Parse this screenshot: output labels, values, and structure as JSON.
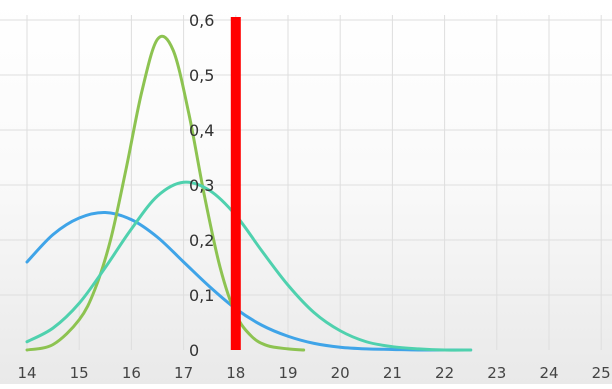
{
  "chart_data": {
    "type": "line",
    "title": "",
    "xlabel": "",
    "ylabel": "",
    "xlim": [
      14,
      25
    ],
    "ylim": [
      0,
      0.6
    ],
    "x_ticks": [
      "14",
      "15",
      "16",
      "17",
      "18",
      "19",
      "20",
      "21",
      "22",
      "23",
      "24",
      "25"
    ],
    "y_ticks": [
      "0",
      "0,1",
      "0,2",
      "0,3",
      "0,4",
      "0,5",
      "0,6"
    ],
    "grid": true,
    "legend": "none",
    "series": [
      {
        "color": "#3fa4e8",
        "points": [
          [
            14.0,
            0.16
          ],
          [
            14.5,
            0.21
          ],
          [
            15.0,
            0.24
          ],
          [
            15.5,
            0.25
          ],
          [
            16.0,
            0.237
          ],
          [
            16.5,
            0.205
          ],
          [
            17.0,
            0.16
          ],
          [
            17.5,
            0.115
          ],
          [
            18.0,
            0.075
          ],
          [
            18.5,
            0.045
          ],
          [
            19.0,
            0.025
          ],
          [
            19.5,
            0.012
          ],
          [
            20.0,
            0.005
          ],
          [
            20.5,
            0.002
          ],
          [
            21.0,
            0.001
          ],
          [
            21.5,
            0.0
          ],
          [
            22.0,
            0.0
          ],
          [
            22.5,
            0.0
          ]
        ]
      },
      {
        "color": "#8dc351",
        "points": [
          [
            14.0,
            0.0
          ],
          [
            14.5,
            0.01
          ],
          [
            15.0,
            0.055
          ],
          [
            15.3,
            0.11
          ],
          [
            15.6,
            0.2
          ],
          [
            15.9,
            0.33
          ],
          [
            16.2,
            0.47
          ],
          [
            16.5,
            0.565
          ],
          [
            16.8,
            0.545
          ],
          [
            17.1,
            0.43
          ],
          [
            17.4,
            0.28
          ],
          [
            17.7,
            0.15
          ],
          [
            18.0,
            0.065
          ],
          [
            18.3,
            0.025
          ],
          [
            18.6,
            0.008
          ],
          [
            19.0,
            0.002
          ],
          [
            19.3,
            0.0
          ]
        ]
      },
      {
        "color": "#4fd1ae",
        "points": [
          [
            14.0,
            0.015
          ],
          [
            14.5,
            0.04
          ],
          [
            15.0,
            0.085
          ],
          [
            15.5,
            0.15
          ],
          [
            16.0,
            0.22
          ],
          [
            16.5,
            0.28
          ],
          [
            17.0,
            0.305
          ],
          [
            17.5,
            0.29
          ],
          [
            18.0,
            0.245
          ],
          [
            18.5,
            0.18
          ],
          [
            19.0,
            0.118
          ],
          [
            19.5,
            0.068
          ],
          [
            20.0,
            0.035
          ],
          [
            20.5,
            0.015
          ],
          [
            21.0,
            0.006
          ],
          [
            21.5,
            0.002
          ],
          [
            22.0,
            0.0
          ],
          [
            22.5,
            0.0
          ]
        ]
      }
    ],
    "reference_line": {
      "x": 18,
      "color": "#ff0000"
    }
  }
}
